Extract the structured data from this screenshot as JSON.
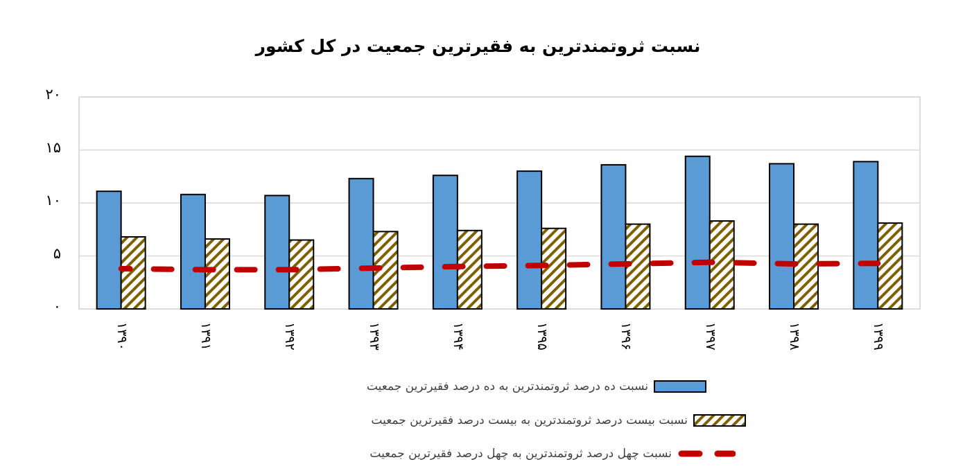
{
  "chart_data": {
    "type": "bar",
    "title": "نسبت ثروتمندترین به فقیرترین جمعیت در کل کشور",
    "xlabel": "",
    "ylabel": "",
    "ylim": [
      0,
      20
    ],
    "yticks": [
      "۰",
      "۵",
      "۱۰",
      "۱۵",
      "۲۰"
    ],
    "ytick_values": [
      0,
      5,
      10,
      15,
      20
    ],
    "grid": true,
    "legend_position": "bottom",
    "categories": [
      "۱۳۹۰",
      "۱۳۹۱",
      "۱۳۹۲",
      "۱۳۹۳",
      "۱۳۹۴",
      "۱۳۹۵",
      "۱۳۹۶",
      "۱۳۹۷",
      "۱۳۹۸",
      "۱۳۹۹"
    ],
    "series": [
      {
        "name": "نسبت ده درصد ثروتمندترین به ده درصد فقیرترین جمعیت",
        "type": "bar",
        "style": "solid",
        "color": "#5B9BD5",
        "values": [
          11.1,
          10.8,
          10.7,
          12.3,
          12.6,
          13.0,
          13.6,
          14.4,
          13.7,
          13.9
        ]
      },
      {
        "name": "نسبت بیست درصد ثروتمندترین به بیست درصد فقیرترین جمعیت",
        "type": "bar",
        "style": "hatched",
        "color": "#7F6000",
        "values": [
          6.8,
          6.6,
          6.5,
          7.3,
          7.4,
          7.6,
          8.0,
          8.3,
          8.0,
          8.1
        ]
      },
      {
        "name": "نسبت چهل درصد ثروتمندترین به چهل درصد فقیرترین جمعیت",
        "type": "line",
        "style": "dashed",
        "color": "#C00000",
        "values": [
          3.8,
          3.7,
          3.7,
          3.85,
          4.0,
          4.1,
          4.25,
          4.4,
          4.25,
          4.3
        ]
      }
    ]
  }
}
